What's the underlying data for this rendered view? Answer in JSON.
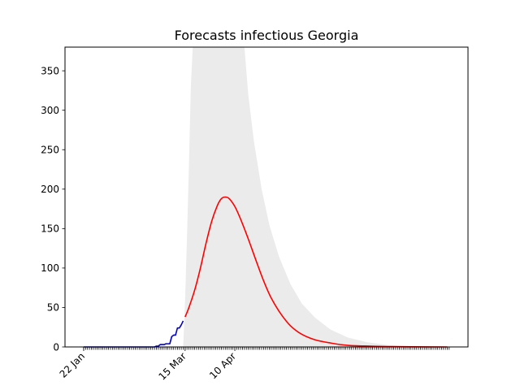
{
  "chart_data": {
    "type": "line",
    "title": "Forecasts infectious Georgia",
    "xlabel": "",
    "ylabel": "",
    "ylim": [
      0,
      380
    ],
    "y_ticks": [
      0,
      50,
      100,
      150,
      200,
      250,
      300,
      350
    ],
    "x_tick_labels": [
      {
        "label": "22 Jan",
        "date": "2020-01-22"
      },
      {
        "label": "15 Mar",
        "date": "2020-03-15"
      },
      {
        "label": "10 Apr",
        "date": "2020-04-10"
      }
    ],
    "x_range": [
      "2020-01-22",
      "2020-07-31"
    ],
    "minor_ticks": "daily",
    "grid": false,
    "legend": "none",
    "series": [
      {
        "role": "observed",
        "color": "#0000cc",
        "points": [
          [
            "2020-01-22",
            0
          ],
          [
            "2020-01-29",
            0
          ],
          [
            "2020-02-05",
            0
          ],
          [
            "2020-02-12",
            0
          ],
          [
            "2020-02-19",
            0
          ],
          [
            "2020-02-24",
            0
          ],
          [
            "2020-02-28",
            0
          ],
          [
            "2020-02-29",
            1
          ],
          [
            "2020-03-01",
            1
          ],
          [
            "2020-03-02",
            3
          ],
          [
            "2020-03-04",
            3
          ],
          [
            "2020-03-05",
            4
          ],
          [
            "2020-03-07",
            4
          ],
          [
            "2020-03-08",
            13
          ],
          [
            "2020-03-09",
            15
          ],
          [
            "2020-03-10",
            15
          ],
          [
            "2020-03-11",
            24
          ],
          [
            "2020-03-12",
            24
          ],
          [
            "2020-03-13",
            28
          ],
          [
            "2020-03-14",
            33
          ]
        ]
      },
      {
        "role": "forecast",
        "color": "#ff0000",
        "points": [
          [
            "2020-03-15",
            38
          ],
          [
            "2020-03-17",
            50
          ],
          [
            "2020-03-20",
            72
          ],
          [
            "2020-03-23",
            100
          ],
          [
            "2020-03-26",
            132
          ],
          [
            "2020-03-29",
            160
          ],
          [
            "2020-04-01",
            180
          ],
          [
            "2020-04-03",
            188
          ],
          [
            "2020-04-05",
            190
          ],
          [
            "2020-04-07",
            188
          ],
          [
            "2020-04-10",
            178
          ],
          [
            "2020-04-13",
            162
          ],
          [
            "2020-04-17",
            137
          ],
          [
            "2020-04-21",
            110
          ],
          [
            "2020-04-25",
            84
          ],
          [
            "2020-04-29",
            62
          ],
          [
            "2020-05-04",
            42
          ],
          [
            "2020-05-09",
            27
          ],
          [
            "2020-05-15",
            16
          ],
          [
            "2020-05-22",
            9
          ],
          [
            "2020-05-30",
            5
          ],
          [
            "2020-06-08",
            2
          ],
          [
            "2020-06-20",
            1
          ],
          [
            "2020-07-01",
            0.4
          ],
          [
            "2020-07-20",
            0.1
          ],
          [
            "2020-07-30",
            0
          ]
        ]
      }
    ],
    "band": {
      "color": "#ebebeb",
      "upper": [
        [
          "2020-03-14",
          0
        ],
        [
          "2020-03-15",
          60
        ],
        [
          "2020-03-16",
          140
        ],
        [
          "2020-03-17",
          230
        ],
        [
          "2020-03-18",
          330
        ],
        [
          "2020-03-19",
          380
        ],
        [
          "2020-04-15",
          380
        ],
        [
          "2020-04-17",
          320
        ],
        [
          "2020-04-20",
          260
        ],
        [
          "2020-04-24",
          200
        ],
        [
          "2020-04-28",
          155
        ],
        [
          "2020-05-03",
          115
        ],
        [
          "2020-05-09",
          80
        ],
        [
          "2020-05-15",
          55
        ],
        [
          "2020-05-22",
          37
        ],
        [
          "2020-05-30",
          22
        ],
        [
          "2020-06-08",
          12
        ],
        [
          "2020-06-18",
          6
        ],
        [
          "2020-06-30",
          2
        ],
        [
          "2020-07-15",
          0.5
        ],
        [
          "2020-07-30",
          0
        ]
      ],
      "lower": [
        [
          "2020-03-14",
          0
        ],
        [
          "2020-07-30",
          0
        ]
      ]
    }
  }
}
